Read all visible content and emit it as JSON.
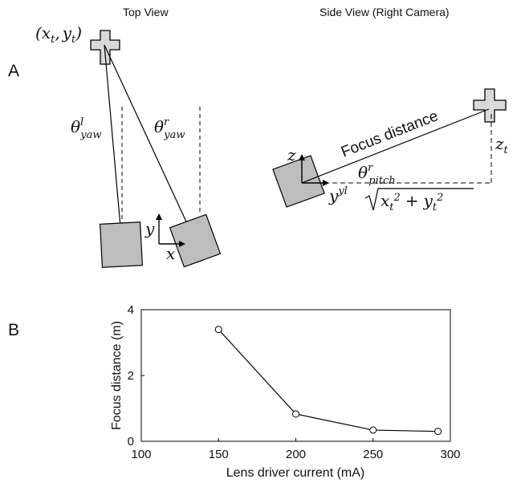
{
  "panel_a": {
    "label": "A",
    "top_view_title": "Top View",
    "side_view_title": "Side View (Right Camera)",
    "target_coord": {
      "open": "(",
      "x": "x",
      "x_sub": "t",
      "comma": ",",
      "y": "y",
      "y_sub": "t",
      "close": ")"
    },
    "theta_yaw_left": {
      "sym": "θ",
      "sup": "l",
      "sub": "yaw"
    },
    "theta_yaw_right": {
      "sym": "θ",
      "sup": "r",
      "sub": "yaw"
    },
    "axis_x": "x",
    "axis_y": "y",
    "axis_z": "z",
    "axis_yyl": {
      "base": "y",
      "sup": "yl"
    },
    "focus_distance_label": "Focus distance",
    "theta_pitch": {
      "sym": "θ",
      "sup": "r",
      "sub": "pitch"
    },
    "z_t": {
      "base": "z",
      "sub": "t"
    },
    "sqrt_expr": {
      "x": "x",
      "x_sub": "t",
      "x_sup": "2",
      "plus": "+",
      "y": "y",
      "y_sub": "t",
      "y_sup": "2"
    }
  },
  "panel_b": {
    "label": "B"
  },
  "chart_data": {
    "type": "line",
    "title": "",
    "xlabel": "Lens driver current (mA)",
    "ylabel": "Focus distance (m)",
    "xlim": [
      100,
      300
    ],
    "ylim": [
      0,
      4
    ],
    "xticks": [
      100,
      150,
      200,
      250,
      300
    ],
    "yticks": [
      0,
      2,
      4
    ],
    "marker": "open-circle",
    "series": [
      {
        "x": [
          150,
          200,
          250,
          292
        ],
        "y": [
          3.4,
          0.83,
          0.34,
          0.3
        ]
      }
    ],
    "grid": false
  },
  "colors": {
    "camera_fill": "#bdbdbd",
    "target_fill": "#d9d9d9",
    "stroke": "#000000"
  }
}
